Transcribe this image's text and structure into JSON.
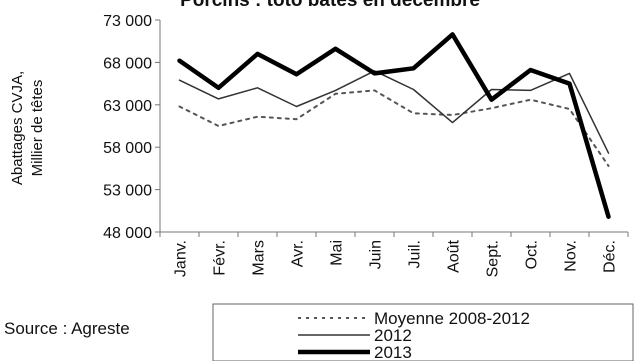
{
  "chart_data": {
    "type": "line",
    "title": "Porcins : toto bâtes en décembre",
    "ylabel_line1": "Abattages CVJA,",
    "ylabel_line2": "Millier de têtes",
    "ylim": [
      48000,
      73000
    ],
    "y_ticks": [
      {
        "value": 48000,
        "label": "48 000"
      },
      {
        "value": 53000,
        "label": "53 000"
      },
      {
        "value": 58000,
        "label": "58 000"
      },
      {
        "value": 63000,
        "label": "63 000"
      },
      {
        "value": 68000,
        "label": "68 000"
      },
      {
        "value": 73000,
        "label": "73 000"
      }
    ],
    "categories": [
      "Janv.",
      "Févr.",
      "Mars",
      "Avr.",
      "Mai",
      "Juin",
      "Juil.",
      "Août",
      "Sept.",
      "Oct.",
      "Nov.",
      "Déc."
    ],
    "grid": false,
    "legend_position": "bottom-right",
    "series": [
      {
        "name": "Moyenne 2008-2012",
        "style": "dotted",
        "color": "#555555",
        "values": [
          62800,
          60500,
          61600,
          61300,
          64300,
          64700,
          62000,
          61800,
          62600,
          63600,
          62500,
          55800
        ]
      },
      {
        "name": "2012",
        "style": "thin",
        "color": "#333333",
        "values": [
          65900,
          63700,
          65000,
          62800,
          64700,
          67000,
          64800,
          60900,
          64800,
          64700,
          66700,
          57300
        ]
      },
      {
        "name": "2013",
        "style": "thick",
        "color": "#000000",
        "values": [
          68200,
          65000,
          69000,
          66600,
          69600,
          66700,
          67300,
          71300,
          63600,
          67100,
          65500,
          49800
        ]
      }
    ]
  },
  "source": "Source : Agreste"
}
